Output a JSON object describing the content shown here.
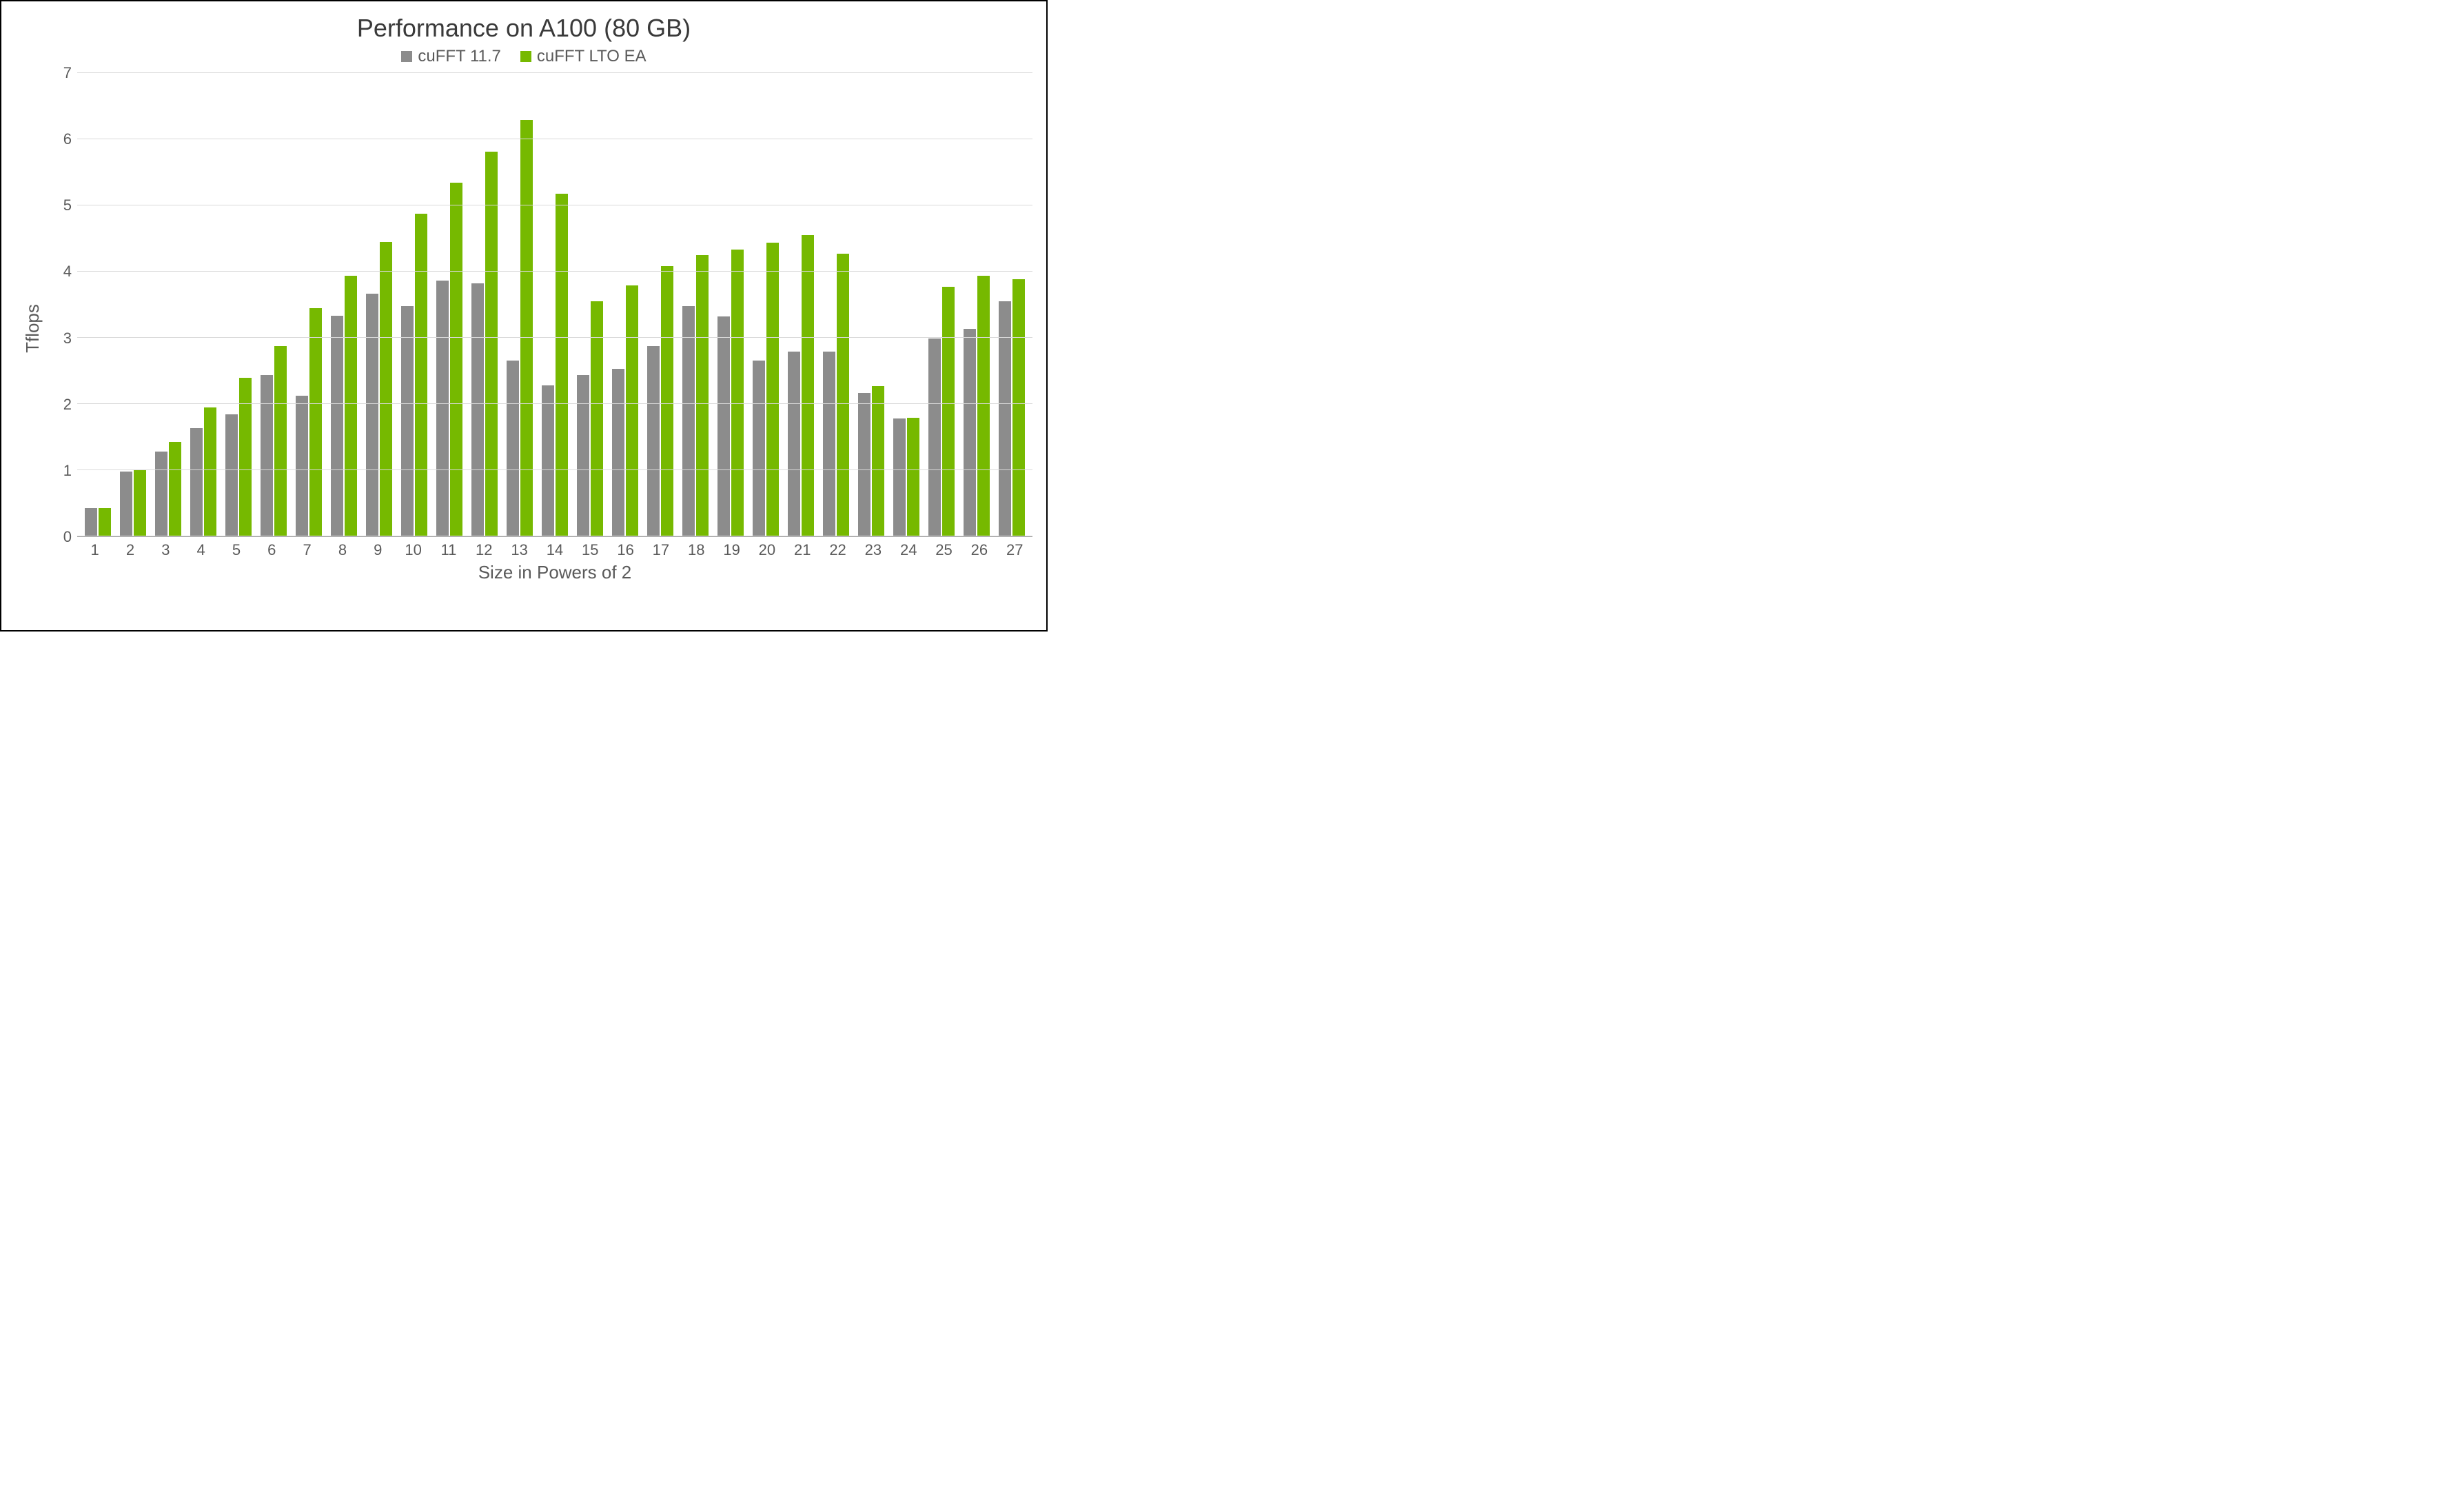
{
  "chart": {
    "type": "bar",
    "title": "Performance on A100 (80 GB)",
    "title_fontsize": 36,
    "title_color": "#3a3a3a",
    "xlabel": "Size in Powers of 2",
    "ylabel": "Tflops",
    "label_fontsize": 26,
    "label_color": "#5a5a5a",
    "tick_fontsize": 22,
    "tick_color": "#5a5a5a",
    "background_color": "#ffffff",
    "border_color": "#000000",
    "grid_color": "#d9d9d9",
    "axis_color": "#a0a0a0",
    "ylim": [
      0,
      7
    ],
    "ytick_step": 1,
    "yticks": [
      0,
      1,
      2,
      3,
      4,
      5,
      6,
      7
    ],
    "categories": [
      "1",
      "2",
      "3",
      "4",
      "5",
      "6",
      "7",
      "8",
      "9",
      "10",
      "11",
      "12",
      "13",
      "14",
      "15",
      "16",
      "17",
      "18",
      "19",
      "20",
      "21",
      "22",
      "23",
      "24",
      "25",
      "26",
      "27"
    ],
    "bar_width": 0.38,
    "bar_gap": 0.02,
    "series": [
      {
        "name": "cuFFT 11.7",
        "color": "#8c8c8c",
        "values": [
          0.43,
          0.98,
          1.28,
          1.64,
          1.84,
          2.44,
          2.13,
          3.33,
          3.67,
          3.48,
          3.86,
          3.82,
          2.66,
          2.28,
          2.44,
          2.53,
          2.87,
          3.48,
          3.32,
          2.66,
          2.79,
          2.79,
          2.17,
          1.78,
          2.99,
          3.14,
          3.55
        ]
      },
      {
        "name": "cuFFT LTO EA",
        "color": "#76b900",
        "values": [
          0.43,
          1.0,
          1.43,
          1.95,
          2.4,
          2.88,
          3.45,
          3.94,
          4.45,
          4.88,
          5.34,
          5.81,
          6.29,
          5.18,
          3.55,
          3.79,
          4.08,
          4.25,
          4.33,
          4.44,
          4.55,
          4.27,
          2.27,
          1.79,
          3.77,
          3.94,
          3.89
        ]
      }
    ],
    "legend": {
      "position": "top-center",
      "fontsize": 24,
      "text_color": "#5a5a5a",
      "swatch_size": 16
    }
  }
}
